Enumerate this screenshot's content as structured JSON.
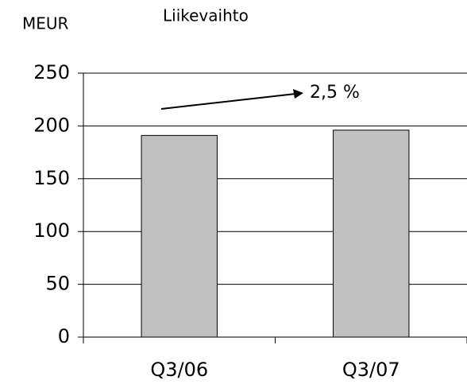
{
  "chart_data": {
    "type": "bar",
    "title": "Liikevaihto",
    "y_label": "MEUR",
    "categories": [
      "Q3/06",
      "Q3/07"
    ],
    "values": [
      191,
      196
    ],
    "color": "#c0c0c0",
    "ylim": [
      0,
      250
    ],
    "yticks": [
      0,
      50,
      100,
      150,
      200,
      250
    ],
    "grid": true,
    "annotation": "2,5 %"
  }
}
